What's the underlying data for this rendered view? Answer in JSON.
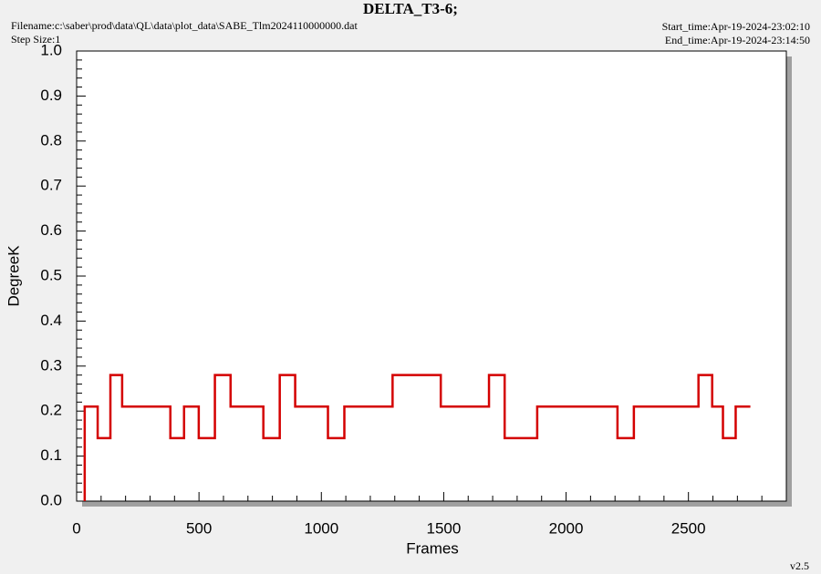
{
  "chart_data": {
    "type": "line",
    "title": "DELTA_T3-6;",
    "filename": "Filename:c:\\saber\\prod\\data\\QL\\data\\plot_data\\SABE_Tlm2024110000000.dat",
    "step_size": "Step Size:1",
    "start_time": "Start_time:Apr-19-2024-23:02:10",
    "end_time": "End_time:Apr-19-2024-23:14:50",
    "version": "v2.5",
    "xlabel": "Frames",
    "ylabel": "DegreeK",
    "xlim": [
      0,
      2900
    ],
    "ylim": [
      0,
      1
    ],
    "xticks": [
      0,
      500,
      1000,
      1500,
      2000,
      2500
    ],
    "yticks": [
      {
        "value": 0,
        "label": "0.0"
      },
      0.1,
      0.2,
      0.3,
      0.4,
      0.5,
      0.6,
      0.7,
      0.8,
      0.9,
      {
        "value": 1,
        "label": "1.0"
      }
    ],
    "xminorticks": [
      100,
      200,
      300,
      400,
      600,
      700,
      800,
      900,
      1100,
      1200,
      1300,
      1400,
      1600,
      1700,
      1800,
      1900,
      2100,
      2200,
      2300,
      2400,
      2600,
      2700,
      2800
    ],
    "yminorticks": [
      0.02,
      0.04,
      0.06,
      0.08,
      0.12,
      0.14,
      0.16,
      0.18,
      0.22,
      0.24,
      0.26,
      0.28,
      0.32,
      0.34,
      0.36,
      0.38,
      0.42,
      0.44,
      0.46,
      0.48,
      0.52,
      0.54,
      0.56,
      0.58,
      0.62,
      0.64,
      0.66,
      0.68,
      0.72,
      0.74,
      0.76,
      0.78,
      0.82,
      0.84,
      0.86,
      0.88,
      0.92,
      0.94,
      0.96,
      0.98
    ],
    "series": [
      {
        "name": "DELTA_T3-6",
        "color": "#d40000",
        "x": [
          33,
          33,
          86,
          86,
          138,
          138,
          186,
          186,
          383,
          383,
          439,
          439,
          499,
          499,
          565,
          565,
          629,
          629,
          763,
          763,
          830,
          830,
          893,
          893,
          1027,
          1027,
          1094,
          1094,
          1291,
          1291,
          1488,
          1488,
          1685,
          1685,
          1749,
          1749,
          1882,
          1882,
          2210,
          2210,
          2277,
          2277,
          2541,
          2541,
          2597,
          2597,
          2641,
          2641,
          2693,
          2693,
          2753
        ],
        "values": [
          0,
          0.21,
          0.21,
          0.14,
          0.14,
          0.28,
          0.28,
          0.21,
          0.21,
          0.14,
          0.14,
          0.21,
          0.21,
          0.14,
          0.14,
          0.28,
          0.28,
          0.21,
          0.21,
          0.14,
          0.14,
          0.28,
          0.28,
          0.21,
          0.21,
          0.14,
          0.14,
          0.21,
          0.21,
          0.28,
          0.28,
          0.21,
          0.21,
          0.28,
          0.28,
          0.14,
          0.14,
          0.21,
          0.21,
          0.14,
          0.14,
          0.21,
          0.21,
          0.28,
          0.28,
          0.21,
          0.21,
          0.14,
          0.14,
          0.21,
          0.21
        ]
      }
    ]
  }
}
